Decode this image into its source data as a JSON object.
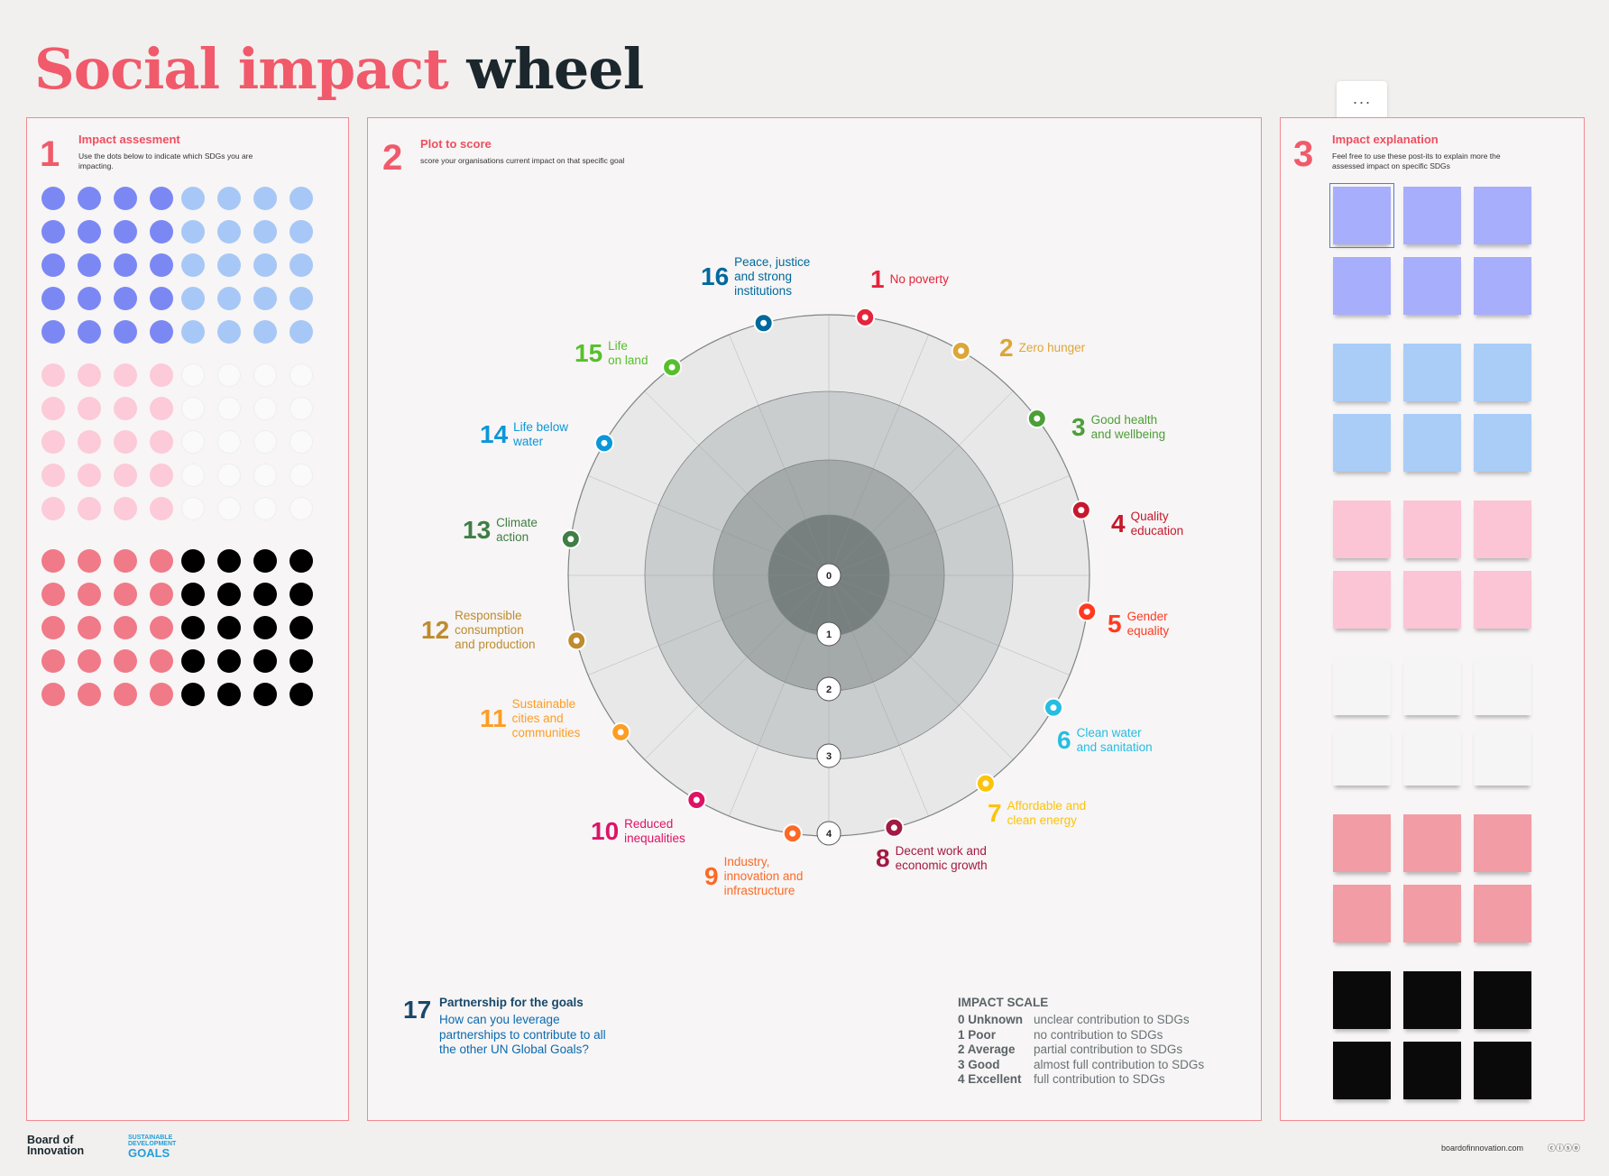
{
  "title": {
    "part1": "Social impact",
    "part2": "wheel"
  },
  "menu": {
    "label": "···"
  },
  "panel1": {
    "number": "1",
    "heading": "Impact assesment",
    "sub": "Use the dots below to indicate which SDGs you are impacting."
  },
  "panel2": {
    "number": "2",
    "heading": "Plot to score",
    "sub": "score your organisations current impact on that specific goal"
  },
  "panel3": {
    "number": "3",
    "heading": "Impact explanation",
    "sub": "Feel free to use these post-its to explain more the assessed impact on specific SDGs"
  },
  "dot_colors": [
    "#7b88f4",
    "#a7c8f6",
    "#fccad8",
    "#fafafa",
    "#f07a88",
    "#000000"
  ],
  "sticky_colors": [
    "#a7aefc",
    "#a9cdf7",
    "#fbc5d6",
    "#f5f5f5",
    "#f29ca5",
    "#0a0a0a"
  ],
  "goals": [
    {
      "num": "1",
      "label": "No poverty",
      "color": "#e5243b",
      "icon": "poverty-icon"
    },
    {
      "num": "2",
      "label": "Zero hunger",
      "color": "#dda63a",
      "icon": "hunger-icon"
    },
    {
      "num": "3",
      "label": "Good health\nand wellbeing",
      "color": "#4c9f38",
      "icon": "health-icon"
    },
    {
      "num": "4",
      "label": "Quality\neducation",
      "color": "#c5192d",
      "icon": "education-icon"
    },
    {
      "num": "5",
      "label": "Gender\nequality",
      "color": "#ff3a21",
      "icon": "gender-icon"
    },
    {
      "num": "6",
      "label": "Clean water\nand sanitation",
      "color": "#26bde2",
      "icon": "water-icon"
    },
    {
      "num": "7",
      "label": "Affordable and\nclean energy",
      "color": "#fcc30b",
      "icon": "energy-icon"
    },
    {
      "num": "8",
      "label": "Decent work and\neconomic growth",
      "color": "#a21942",
      "icon": "work-icon"
    },
    {
      "num": "9",
      "label": "Industry,\ninnovation and\ninfrastructure",
      "color": "#fd6925",
      "icon": "industry-icon"
    },
    {
      "num": "10",
      "label": "Reduced\ninequalities",
      "color": "#dd1367",
      "icon": "inequality-icon"
    },
    {
      "num": "11",
      "label": "Sustainable\ncities and\ncommunities",
      "color": "#fd9d24",
      "icon": "cities-icon"
    },
    {
      "num": "12",
      "label": "Responsible\nconsumption\nand production",
      "color": "#bf8b2e",
      "icon": "consumption-icon"
    },
    {
      "num": "13",
      "label": "Climate\naction",
      "color": "#3f7e44",
      "icon": "climate-icon"
    },
    {
      "num": "14",
      "label": "Life below\nwater",
      "color": "#0a97d9",
      "icon": "ocean-icon"
    },
    {
      "num": "15",
      "label": "Life\non land",
      "color": "#56c02b",
      "icon": "land-icon"
    },
    {
      "num": "16",
      "label": "Peace, justice\nand strong\ninstitutions",
      "color": "#00689d",
      "icon": "justice-icon"
    }
  ],
  "scale_marks": [
    "0",
    "1",
    "2",
    "3",
    "4"
  ],
  "partnership": {
    "num": "17",
    "heading": "Partnership for the goals",
    "text": "How can you leverage\npartnerships to contribute to all\nthe other UN Global Goals?",
    "color": "#19486a"
  },
  "impact_scale": {
    "heading": "IMPACT SCALE",
    "rows": [
      {
        "level": "0 Unknown",
        "desc": "unclear contribution to SDGs"
      },
      {
        "level": "1  Poor",
        "desc": "no contribution to SDGs"
      },
      {
        "level": "2 Average",
        "desc": "partial contribution to SDGs"
      },
      {
        "level": "3 Good",
        "desc": "almost full contribution to SDGs"
      },
      {
        "level": "4 Excellent",
        "desc": "full contribution to SDGs"
      }
    ]
  },
  "footer": {
    "brand_line1": "Board of",
    "brand_line2": "Innovation",
    "sdg_line1": "SUSTAINABLE",
    "sdg_line2": "DEVELOPMENT",
    "sdg_line3": "GOALS",
    "site": "boardofinnovation.com",
    "license": "ⓒⓘⓢⓞ"
  }
}
